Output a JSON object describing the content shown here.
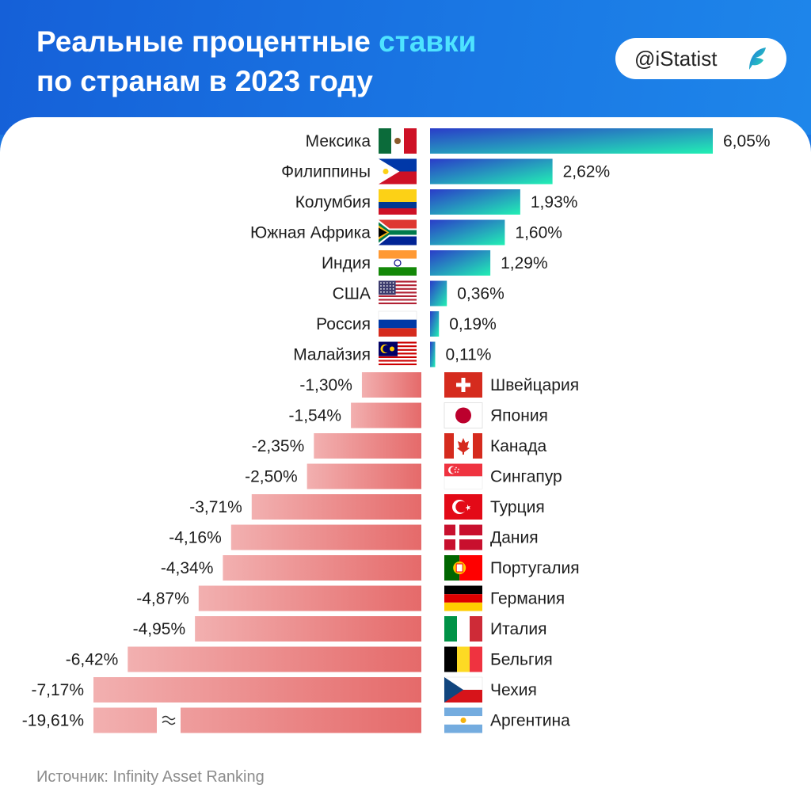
{
  "header": {
    "title_line1_part1": "Реальные процентные ",
    "title_line1_accent": "ставки",
    "title_line2": "по странам в 2023 году",
    "badge": "@iStatist"
  },
  "colors": {
    "positive_start": "#2a3cc9",
    "positive_end": "#22f0b4",
    "negative_start": "#f2b0b0",
    "negative_end": "#e56a6a",
    "accent_title": "#4ee3ff",
    "header_bg": "#1a6fe0"
  },
  "chart_data": {
    "type": "bar",
    "orientation": "horizontal-diverging",
    "title": "Реальные процентные ставки по странам в 2023 году",
    "unit": "%",
    "axis_break_note": "Аргентина bar truncated with break symbol",
    "series": [
      {
        "name": "Реальная процентная ставка",
        "points": [
          {
            "country": "Мексика",
            "value": 6.05,
            "label": "6,05%",
            "flag": "mexico-flag"
          },
          {
            "country": "Филиппины",
            "value": 2.62,
            "label": "2,62%",
            "flag": "philippines-flag"
          },
          {
            "country": "Колумбия",
            "value": 1.93,
            "label": "1,93%",
            "flag": "colombia-flag"
          },
          {
            "country": "Южная Африка",
            "value": 1.6,
            "label": "1,60%",
            "flag": "south-africa-flag"
          },
          {
            "country": "Индия",
            "value": 1.29,
            "label": "1,29%",
            "flag": "india-flag"
          },
          {
            "country": "США",
            "value": 0.36,
            "label": "0,36%",
            "flag": "usa-flag"
          },
          {
            "country": "Россия",
            "value": 0.19,
            "label": "0,19%",
            "flag": "russia-flag"
          },
          {
            "country": "Малайзия",
            "value": 0.11,
            "label": "0,11%",
            "flag": "malaysia-flag"
          },
          {
            "country": "Швейцария",
            "value": -1.3,
            "label": "-1,30%",
            "flag": "switzerland-flag"
          },
          {
            "country": "Япония",
            "value": -1.54,
            "label": "-1,54%",
            "flag": "japan-flag"
          },
          {
            "country": "Канада",
            "value": -2.35,
            "label": "-2,35%",
            "flag": "canada-flag"
          },
          {
            "country": "Сингапур",
            "value": -2.5,
            "label": "-2,50%",
            "flag": "singapore-flag"
          },
          {
            "country": "Турция",
            "value": -3.71,
            "label": "-3,71%",
            "flag": "turkey-flag"
          },
          {
            "country": "Дания",
            "value": -4.16,
            "label": "-4,16%",
            "flag": "denmark-flag"
          },
          {
            "country": "Португалия",
            "value": -4.34,
            "label": "-4,34%",
            "flag": "portugal-flag"
          },
          {
            "country": "Германия",
            "value": -4.87,
            "label": "-4,87%",
            "flag": "germany-flag"
          },
          {
            "country": "Италия",
            "value": -4.95,
            "label": "-4,95%",
            "flag": "italy-flag"
          },
          {
            "country": "Бельгия",
            "value": -6.42,
            "label": "-6,42%",
            "flag": "belgium-flag"
          },
          {
            "country": "Чехия",
            "value": -7.17,
            "label": "-7,17%",
            "flag": "czechia-flag"
          },
          {
            "country": "Аргентина",
            "value": -19.61,
            "label": "-19,61%",
            "flag": "argentina-flag",
            "truncated": true
          }
        ]
      }
    ]
  },
  "source": "Источник: Infinity Asset Ranking"
}
